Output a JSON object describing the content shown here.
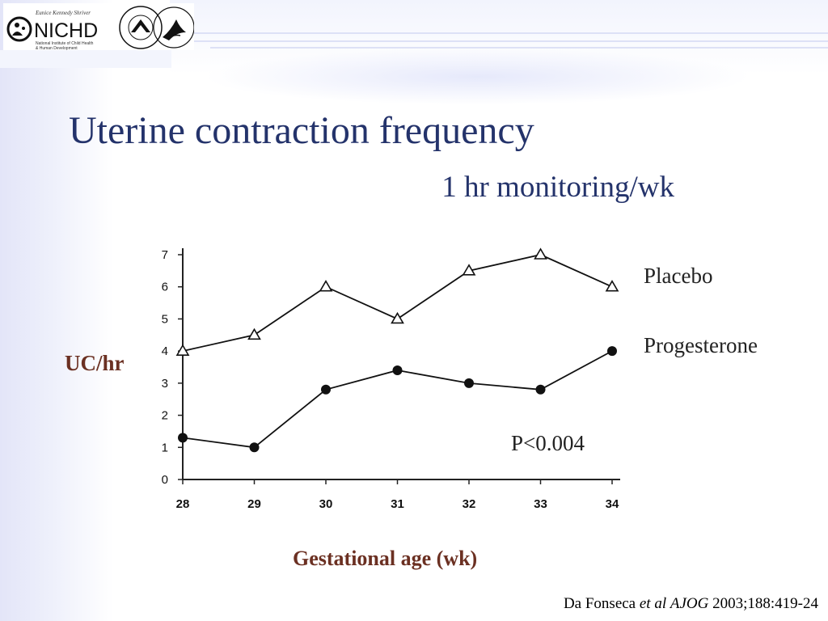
{
  "logo": {
    "tagline": "Eunice Kennedy Shriver",
    "name": "NICHD",
    "line1": "National Institute of Child Health",
    "line2": "& Human Development"
  },
  "slide": {
    "title": "Uterine contraction frequency",
    "subtitle": "1 hr monitoring/wk",
    "p_value": "P<0.004",
    "citation": {
      "authors": "Da Fonseca ",
      "etal": "et al",
      "journal": "AJOG",
      "ref": " 2003;188:419-24"
    }
  },
  "chart_data": {
    "type": "line",
    "title": "",
    "xlabel": "Gestational age (wk)",
    "ylabel": "UC/hr",
    "x": [
      28,
      29,
      30,
      31,
      32,
      33,
      34
    ],
    "xlim": [
      28,
      34
    ],
    "ylim": [
      0,
      7
    ],
    "yticks": [
      0,
      1,
      2,
      3,
      4,
      5,
      6,
      7
    ],
    "grid": false,
    "legend_position": "right",
    "series": [
      {
        "name": "Placebo",
        "marker": "open-triangle",
        "values": [
          4.0,
          4.5,
          6.0,
          5.0,
          6.5,
          7.0,
          6.0
        ]
      },
      {
        "name": "Progesterone",
        "marker": "filled-circle",
        "values": [
          1.3,
          1.0,
          2.8,
          3.4,
          3.0,
          2.8,
          4.0
        ]
      }
    ]
  }
}
